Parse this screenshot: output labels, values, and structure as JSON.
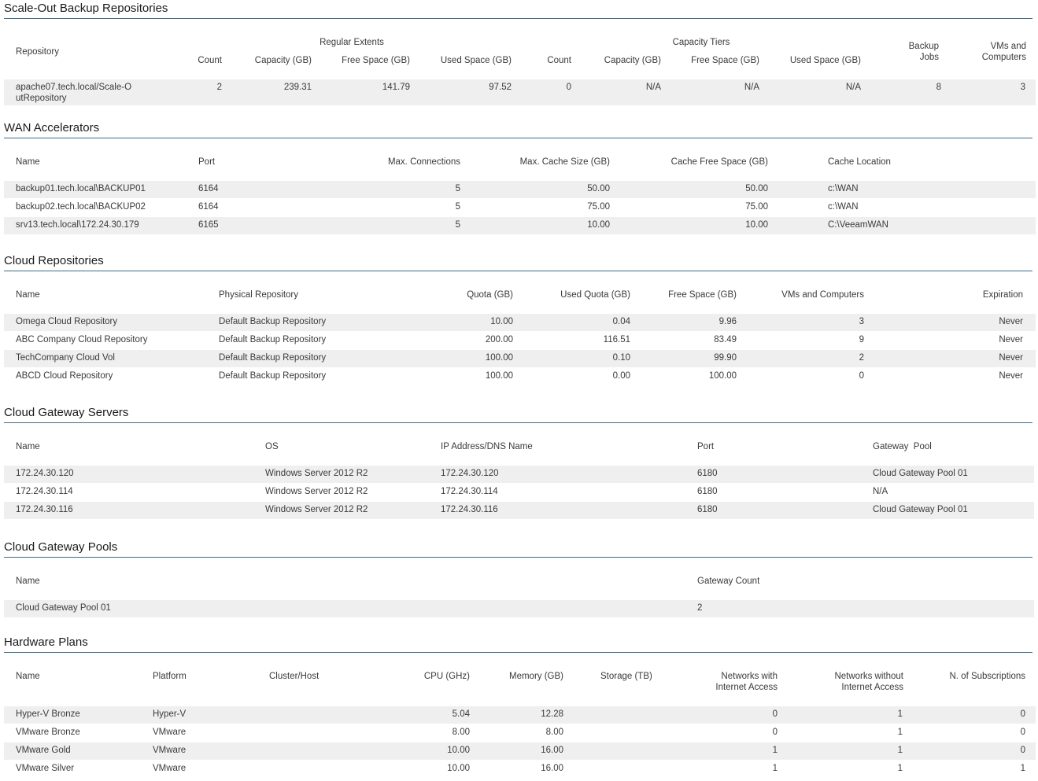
{
  "sobr": {
    "title": "Scale-Out Backup Repositories",
    "headers": {
      "repository": "Repository",
      "regular_extents": "Regular Extents",
      "capacity_tiers": "Capacity Tiers",
      "count": "Count",
      "capacity": "Capacity (GB)",
      "free_space": "Free Space (GB)",
      "used_space": "Used Space (GB)",
      "count2": "Count",
      "capacity2": "Capacity (GB)",
      "free_space2": "Free Space (GB)",
      "used_space2": "Used Space (GB)",
      "backup_jobs": "Backup Jobs",
      "vms": "VMs and Computers"
    },
    "rows": [
      [
        "apache07.tech.local/Scale-OutRepository",
        "2",
        "239.31",
        "141.79",
        "97.52",
        "0",
        "N/A",
        "N/A",
        "N/A",
        "8",
        "3"
      ]
    ]
  },
  "wan": {
    "title": "WAN Accelerators",
    "headers": [
      "Name",
      "Port",
      "Max. Connections",
      "Max. Cache Size (GB)",
      "Cache Free Space (GB)",
      "Cache Location"
    ],
    "rows": [
      [
        "backup01.tech.local\\BACKUP01",
        "6164",
        "5",
        "50.00",
        "50.00",
        "c:\\WAN"
      ],
      [
        "backup02.tech.local\\BACKUP02",
        "6164",
        "5",
        "75.00",
        "75.00",
        "c:\\WAN"
      ],
      [
        "srv13.tech.local\\172.24.30.179",
        "6165",
        "5",
        "10.00",
        "10.00",
        "C:\\VeeamWAN"
      ]
    ]
  },
  "cloud_repos": {
    "title": "Cloud Repositories",
    "headers": [
      "Name",
      "Physical Repository",
      "Quota (GB)",
      "Used Quota (GB)",
      "Free Space (GB)",
      "VMs and Computers",
      "Expiration"
    ],
    "rows": [
      [
        "Omega Cloud Repository",
        "Default Backup Repository",
        "10.00",
        "0.04",
        "9.96",
        "3",
        "Never"
      ],
      [
        "ABC Company Cloud Repository",
        "Default Backup Repository",
        "200.00",
        "116.51",
        "83.49",
        "9",
        "Never"
      ],
      [
        "TechCompany Cloud Vol",
        "Default Backup Repository",
        "100.00",
        "0.10",
        "99.90",
        "2",
        "Never"
      ],
      [
        "ABCD Cloud Repository",
        "Default Backup Repository",
        "100.00",
        "0.00",
        "100.00",
        "0",
        "Never"
      ]
    ]
  },
  "gateway_servers": {
    "title": "Cloud Gateway Servers",
    "headers": [
      "Name",
      "OS",
      "IP Address/DNS Name",
      "Port",
      "Gateway  Pool"
    ],
    "rows": [
      [
        "172.24.30.120",
        "Windows Server 2012 R2",
        "172.24.30.120",
        "6180",
        "Cloud Gateway Pool 01"
      ],
      [
        "172.24.30.114",
        "Windows Server 2012 R2",
        "172.24.30.114",
        "6180",
        "N/A"
      ],
      [
        "172.24.30.116",
        "Windows Server 2012 R2",
        "172.24.30.116",
        "6180",
        "Cloud Gateway Pool 01"
      ]
    ]
  },
  "gateway_pools": {
    "title": "Cloud Gateway Pools",
    "headers": [
      "Name",
      "Gateway Count"
    ],
    "rows": [
      [
        "Cloud Gateway Pool 01",
        "2"
      ]
    ]
  },
  "hw_plans": {
    "title": "Hardware Plans",
    "headers": [
      "Name",
      "Platform",
      "Cluster/Host",
      "CPU (GHz)",
      "Memory (GB)",
      "Storage (TB)",
      "Networks with Internet Access",
      "Networks without Internet Access",
      "N. of Subscriptions"
    ],
    "rows": [
      [
        "Hyper-V Bronze",
        "Hyper-V",
        "",
        "5.04",
        "12.28",
        "",
        "0",
        "1",
        "0"
      ],
      [
        "VMware Bronze",
        "VMware",
        "",
        "8.00",
        "8.00",
        "",
        "0",
        "1",
        "0"
      ],
      [
        "VMware Gold",
        "VMware",
        "",
        "10.00",
        "16.00",
        "",
        "1",
        "1",
        "0"
      ],
      [
        "VMware Silver",
        "VMware",
        "",
        "10.00",
        "16.00",
        "",
        "1",
        "1",
        "1"
      ]
    ]
  }
}
